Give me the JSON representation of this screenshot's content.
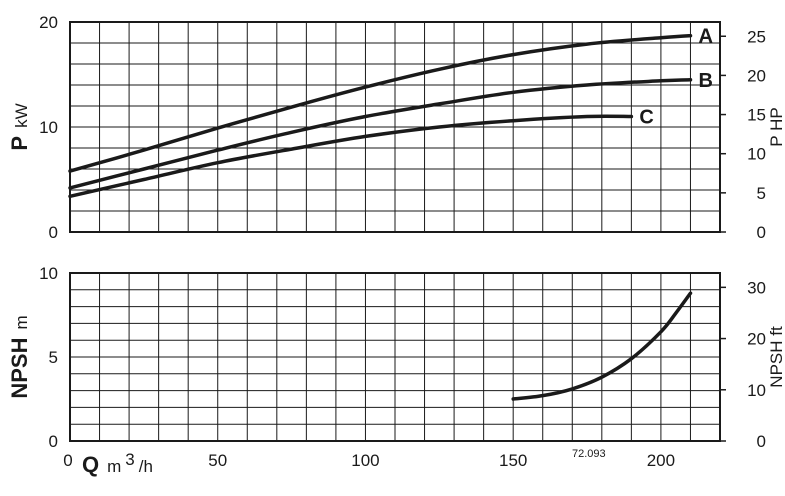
{
  "chart_data": [
    {
      "type": "line",
      "xlabel": {
        "symbol": "Q",
        "unit_prefix": "m",
        "unit_sup": "3",
        "unit_suffix": "/h"
      },
      "ylabel": {
        "symbol": "P",
        "unit": "kW"
      },
      "ylabel_right": "P HP",
      "xlim": [
        0,
        220
      ],
      "ylim": [
        0,
        20
      ],
      "ylim_right": [
        0,
        26.82
      ],
      "yticks": [
        "0",
        "10",
        "20"
      ],
      "yticks_values": [
        0,
        10,
        20
      ],
      "yticks_right": [
        "0",
        "5",
        "10",
        "15",
        "20",
        "25"
      ],
      "yticks_right_values": [
        0,
        5,
        10,
        15,
        20,
        25
      ],
      "grid": true,
      "series": [
        {
          "name": "A",
          "x": [
            0,
            25,
            50,
            75,
            100,
            125,
            150,
            175,
            200,
            210
          ],
          "y": [
            5.8,
            7.8,
            9.9,
            11.9,
            13.8,
            15.5,
            16.9,
            17.9,
            18.5,
            18.7
          ]
        },
        {
          "name": "B",
          "x": [
            0,
            25,
            50,
            75,
            100,
            125,
            150,
            175,
            200,
            210
          ],
          "y": [
            4.2,
            6.0,
            7.8,
            9.5,
            11.0,
            12.2,
            13.3,
            14.0,
            14.4,
            14.5
          ]
        },
        {
          "name": "C",
          "x": [
            0,
            25,
            50,
            75,
            100,
            125,
            150,
            175,
            190
          ],
          "y": [
            3.4,
            5.0,
            6.6,
            7.9,
            9.1,
            10.0,
            10.6,
            11.0,
            11.0
          ]
        }
      ]
    },
    {
      "type": "line",
      "xlabel": "",
      "ylabel": {
        "symbol": "NPSH",
        "unit": "m"
      },
      "ylabel_right": "NPSH ft",
      "xlim": [
        0,
        220
      ],
      "ylim": [
        0,
        10
      ],
      "ylim_right": [
        0,
        32.8
      ],
      "xticks": [
        "0",
        "50",
        "100",
        "150",
        "200"
      ],
      "xticks_values": [
        0,
        50,
        100,
        150,
        200
      ],
      "yticks": [
        "0",
        "5",
        "10"
      ],
      "yticks_values": [
        0,
        5,
        10
      ],
      "yticks_right": [
        "0",
        "10",
        "20",
        "30"
      ],
      "yticks_right_values": [
        0,
        10,
        20,
        30
      ],
      "grid": true,
      "series": [
        {
          "x": [
            150,
            160,
            170,
            180,
            190,
            200,
            205,
            210
          ],
          "y": [
            2.5,
            2.7,
            3.1,
            3.8,
            4.9,
            6.5,
            7.6,
            8.8
          ]
        }
      ],
      "annotation": "72.093"
    }
  ]
}
